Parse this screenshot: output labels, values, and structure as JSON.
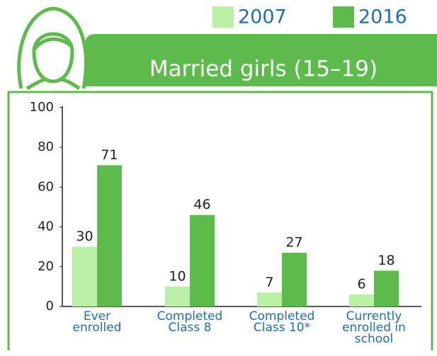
{
  "chart_data": {
    "type": "bar",
    "title": "Married girls (15–19)",
    "categories": [
      "Ever\nenrolled",
      "Completed\nClass 8",
      "Completed\nClass 10*",
      "Currently\nenrolled in\nschool"
    ],
    "series": [
      {
        "name": "2007",
        "color": "#b9f0a3",
        "values": [
          30,
          10,
          7,
          6
        ]
      },
      {
        "name": "2016",
        "color": "#5cbb4a",
        "values": [
          71,
          46,
          27,
          18
        ]
      }
    ],
    "ylim": [
      0,
      100
    ],
    "yticks": [
      0,
      20,
      40,
      60,
      80,
      100
    ]
  }
}
